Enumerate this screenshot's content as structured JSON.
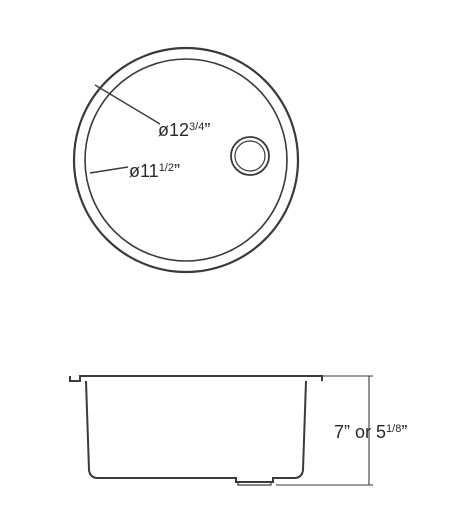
{
  "top_view": {
    "outer_diameter": {
      "symbol": "ø",
      "whole": "12",
      "fraction": "3/4",
      "unit": "”"
    },
    "inner_diameter": {
      "symbol": "ø",
      "whole": "11",
      "fraction": "1/2",
      "unit": "”"
    }
  },
  "side_view": {
    "depth": {
      "first": "7”",
      "joiner": "or",
      "whole": "5",
      "fraction": "1/8",
      "unit": "”"
    }
  }
}
